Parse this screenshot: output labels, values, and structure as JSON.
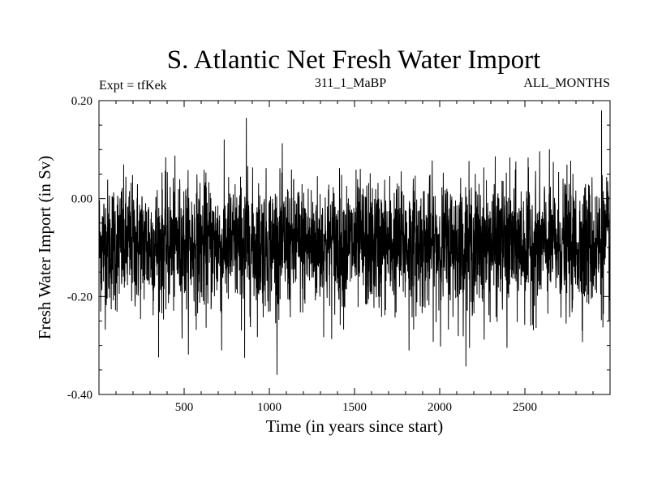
{
  "chart_data": {
    "type": "line",
    "title": "S. Atlantic Net Fresh Water Import",
    "annotations": {
      "left": "Expt = tfKek",
      "center": "311_1_MaBP",
      "right": "ALL_MONTHS"
    },
    "xlabel": "Time (in years since start)",
    "ylabel": "Fresh Water Import (in Sv)",
    "xlim": [
      0,
      3000
    ],
    "ylim": [
      -0.4,
      0.2
    ],
    "x_ticks": [
      500,
      1000,
      1500,
      2000,
      2500
    ],
    "x_tick_labels": [
      "500",
      "1000",
      "1500",
      "2000",
      "2500"
    ],
    "y_ticks": [
      0.2,
      0.0,
      -0.2,
      -0.4
    ],
    "y_tick_labels": [
      "0.20",
      "0.00",
      "-0.20",
      "-0.40"
    ],
    "grid": false,
    "series": [
      {
        "approximate_series": true,
        "summary": {
          "mean": -0.095,
          "typical_min": -0.25,
          "typical_max": 0.06
        },
        "extreme_points": [
          {
            "x": 865,
            "y": 0.165
          },
          {
            "x": 2950,
            "y": 0.18
          },
          {
            "x": 855,
            "y": -0.325
          },
          {
            "x": 720,
            "y": -0.31
          },
          {
            "x": 1820,
            "y": -0.31
          },
          {
            "x": 2175,
            "y": -0.305
          },
          {
            "x": 2395,
            "y": -0.305
          }
        ],
        "color": "#000000"
      }
    ]
  }
}
